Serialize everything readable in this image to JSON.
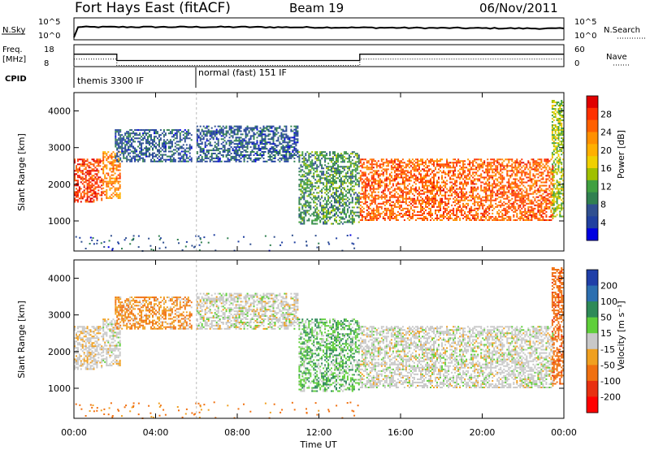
{
  "header": {
    "title": "Fort Hays East (fitACF)",
    "beam": "Beam 19",
    "date": "06/Nov/2011"
  },
  "top_panels": {
    "nsky_label": "N.Sky",
    "nsky_ticks": [
      "10^5",
      "10^0"
    ],
    "nsearch_label": "N.Search",
    "nsearch_ticks": [
      "10^5",
      "10^0"
    ],
    "freq_label": "Freq.",
    "freq_unit": "[MHz]",
    "freq_ticks": [
      "18",
      "8"
    ],
    "nave_label": "Nave",
    "nave_ticks": [
      "60",
      "0"
    ],
    "cpid_label": "CPID",
    "cpid_entries": [
      {
        "text": "themis 3300 IF",
        "start_hour": 0
      },
      {
        "text": "normal (fast) 151 IF",
        "start_hour": 6
      }
    ],
    "freq_profile": [
      {
        "hour": 0,
        "mhz": 13.5
      },
      {
        "hour": 2.1,
        "mhz": 10.5
      },
      {
        "hour": 14,
        "mhz": 13.5
      },
      {
        "hour": 24,
        "mhz": 13.5
      }
    ]
  },
  "power_panel": {
    "ylabel": "Slant Range [km]",
    "yticks": [
      "4000",
      "3000",
      "2000",
      "1000"
    ],
    "colorbar_label": "Power [dB]",
    "colorbar_ticks": [
      "28",
      "24",
      "20",
      "16",
      "12",
      "8",
      "4"
    ],
    "colors": [
      "#e00000",
      "#ff3000",
      "#ff6000",
      "#ff9000",
      "#ffb000",
      "#f0d000",
      "#a0c000",
      "#40a040",
      "#308050",
      "#305090",
      "#2040a0",
      "#0000e0"
    ]
  },
  "velocity_panel": {
    "ylabel": "Slant Range [km]",
    "yticks": [
      "4000",
      "3000",
      "2000",
      "1000"
    ],
    "colorbar_label": "Velocity [m s⁻¹]",
    "colorbar_ticks": [
      "200",
      "100",
      "50",
      "15",
      "-15",
      "-50",
      "-100",
      "-200"
    ],
    "colors": [
      "#1f3fa8",
      "#2c6fb0",
      "#2e8a58",
      "#5fcf3a",
      "#c8c8c8",
      "#f0a020",
      "#f07010",
      "#e83010",
      "#ff0000"
    ]
  },
  "xaxis": {
    "label": "Time UT",
    "ticks": [
      "00:00",
      "04:00",
      "08:00",
      "12:00",
      "16:00",
      "20:00",
      "00:00"
    ]
  },
  "chart_data": {
    "type": "heatmap",
    "title": "Fort Hays East (fitACF)",
    "subtitle": "Beam 19",
    "date": "06/Nov/2011",
    "xlabel": "Time UT",
    "ylabel": "Slant Range [km]",
    "xlim_hours": [
      0,
      24
    ],
    "ylim_km": [
      180,
      4500
    ],
    "panels": [
      {
        "name": "Power",
        "colorbar_label": "Power [dB]",
        "zlim": [
          0,
          30
        ]
      },
      {
        "name": "Velocity",
        "colorbar_label": "Velocity [m s⁻¹]",
        "zlim": [
          -250,
          250
        ]
      }
    ],
    "echo_regions_approx": [
      {
        "hours": [
          0.0,
          1.4
        ],
        "range_km": [
          1500,
          2700
        ],
        "power_db": 26,
        "velocity": -5
      },
      {
        "hours": [
          1.4,
          2.3
        ],
        "range_km": [
          1600,
          2900
        ],
        "power_db": 22,
        "velocity": 0
      },
      {
        "hours": [
          2.0,
          5.8
        ],
        "range_km": [
          2600,
          3500
        ],
        "power_db": 6,
        "velocity": -30
      },
      {
        "hours": [
          6.0,
          11.0
        ],
        "range_km": [
          2600,
          3600
        ],
        "power_db": 6,
        "velocity": 0
      },
      {
        "hours": [
          11.0,
          14.0
        ],
        "range_km": [
          900,
          2900
        ],
        "power_db": 10,
        "velocity": 25
      },
      {
        "hours": [
          14.0,
          23.5
        ],
        "range_km": [
          1000,
          2700
        ],
        "power_db": 24,
        "velocity": 0
      },
      {
        "hours": [
          23.4,
          24.0
        ],
        "range_km": [
          1100,
          4300
        ],
        "power_db": 14,
        "velocity": -60
      }
    ]
  }
}
